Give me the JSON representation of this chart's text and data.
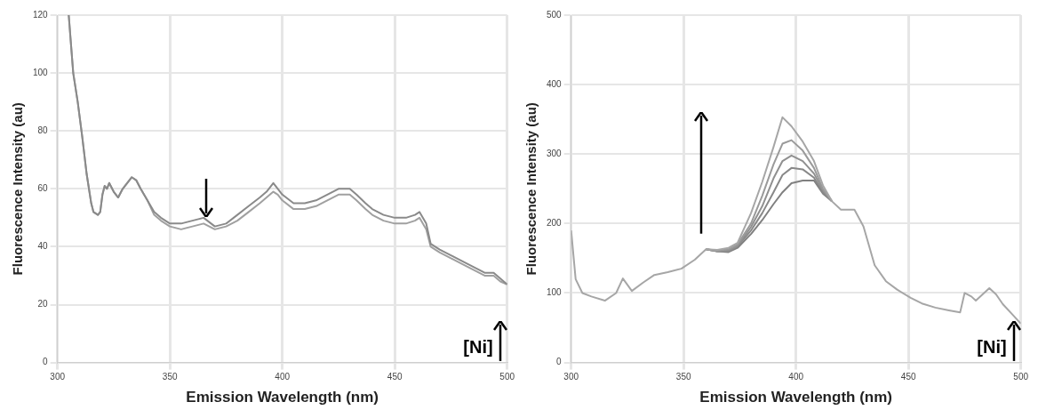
{
  "chart_data": [
    {
      "type": "line",
      "xlabel": "Emission Wavelength (nm)",
      "ylabel": "Fluorescence Intensity (au)",
      "xlim": [
        300,
        500
      ],
      "xticks": [
        300,
        350,
        400,
        450,
        500
      ],
      "ylim": [
        0,
        120
      ],
      "yticks": [
        0,
        20,
        40,
        60,
        80,
        100,
        120
      ],
      "grid": true,
      "annotations": [
        "[Ni]"
      ],
      "x": [
        305,
        306,
        307,
        309,
        311,
        313,
        315,
        316,
        318,
        319,
        320,
        321,
        322,
        323,
        325,
        327,
        329,
        331,
        333,
        335,
        337,
        340,
        343,
        346,
        350,
        355,
        360,
        365,
        370,
        375,
        380,
        385,
        390,
        393,
        396,
        398,
        400,
        405,
        410,
        415,
        420,
        425,
        430,
        433,
        437,
        440,
        445,
        450,
        455,
        459,
        461,
        464,
        466,
        470,
        475,
        480,
        485,
        490,
        494,
        497,
        500
      ],
      "series": [
        {
          "color": "#8a8a8a",
          "values": [
            120,
            110,
            100,
            90,
            78,
            65,
            55,
            52,
            51,
            52,
            58,
            61,
            60,
            62,
            59,
            57,
            60,
            62,
            64,
            63,
            60,
            56,
            52,
            50,
            48,
            48,
            49,
            50,
            47,
            48,
            51,
            54,
            57,
            59,
            62,
            60,
            58,
            55,
            55,
            56,
            58,
            60,
            60,
            58,
            55,
            53,
            51,
            50,
            50,
            51,
            52,
            48,
            41,
            39,
            37,
            35,
            33,
            31,
            31,
            29,
            27
          ]
        },
        {
          "color": "#a0a0a0",
          "values": [
            120,
            110,
            100,
            90,
            78,
            65,
            55,
            52,
            51,
            52,
            58,
            61,
            60,
            62,
            59,
            57,
            60,
            62,
            64,
            63,
            60,
            56,
            51,
            49,
            47,
            46,
            47,
            48,
            46,
            47,
            49,
            52,
            55,
            57,
            59,
            58,
            56,
            53,
            53,
            54,
            56,
            58,
            58,
            56,
            53,
            51,
            49,
            48,
            48,
            49,
            50,
            46,
            40,
            38,
            36,
            34,
            32,
            30,
            30,
            28,
            27
          ]
        }
      ]
    },
    {
      "type": "line",
      "xlabel": "Emission Wavelength (nm)",
      "ylabel": "Fluorescence Intensity (au)",
      "xlim": [
        300,
        500
      ],
      "xticks": [
        300,
        350,
        400,
        450,
        500
      ],
      "ylim": [
        0,
        500
      ],
      "yticks": [
        0,
        100,
        200,
        300,
        400,
        500
      ],
      "grid": true,
      "annotations": [
        "[Ni]"
      ],
      "x": [
        300,
        302,
        305,
        309,
        315,
        320,
        323,
        327,
        332,
        337,
        343,
        349,
        355,
        360,
        365,
        370,
        374,
        380,
        385,
        390,
        394,
        398,
        403,
        408,
        412,
        416,
        420,
        426,
        430,
        435,
        440,
        445,
        451,
        456,
        462,
        468,
        473,
        475,
        478,
        480,
        483,
        486,
        489,
        492,
        496,
        500
      ],
      "series": [
        {
          "color": "#a6a6a6",
          "values": [
            190,
            120,
            100,
            95,
            89,
            100,
            121,
            103,
            115,
            126,
            130,
            135,
            148,
            163,
            162,
            165,
            172,
            215,
            260,
            310,
            353,
            340,
            318,
            290,
            255,
            232,
            220,
            220,
            196,
            140,
            117,
            105,
            93,
            85,
            79,
            75,
            72,
            100,
            95,
            89,
            98,
            107,
            98,
            84,
            70,
            56
          ]
        },
        {
          "color": "#9a9a9a",
          "values": [
            null,
            null,
            null,
            null,
            null,
            null,
            null,
            null,
            null,
            null,
            null,
            null,
            null,
            163,
            161,
            163,
            170,
            200,
            240,
            285,
            315,
            320,
            305,
            280,
            250,
            232,
            null,
            null,
            null,
            null,
            null,
            null,
            null,
            null,
            null,
            null,
            null,
            null,
            null,
            null,
            null,
            null,
            null,
            null,
            null,
            null
          ]
        },
        {
          "color": "#909090",
          "values": [
            null,
            null,
            null,
            null,
            null,
            null,
            null,
            null,
            null,
            null,
            null,
            null,
            null,
            163,
            160,
            161,
            168,
            195,
            225,
            265,
            290,
            298,
            290,
            272,
            248,
            232,
            null,
            null,
            null,
            null,
            null,
            null,
            null,
            null,
            null,
            null,
            null,
            null,
            null,
            null,
            null,
            null,
            null,
            null,
            null,
            null
          ]
        },
        {
          "color": "#888888",
          "values": [
            null,
            null,
            null,
            null,
            null,
            null,
            null,
            null,
            null,
            null,
            null,
            null,
            null,
            163,
            160,
            160,
            167,
            190,
            215,
            245,
            270,
            280,
            278,
            266,
            245,
            232,
            null,
            null,
            null,
            null,
            null,
            null,
            null,
            null,
            null,
            null,
            null,
            null,
            null,
            null,
            null,
            null,
            null,
            null,
            null,
            null
          ]
        },
        {
          "color": "#808080",
          "values": [
            null,
            null,
            null,
            null,
            null,
            null,
            null,
            null,
            null,
            null,
            null,
            null,
            null,
            163,
            160,
            159,
            165,
            185,
            205,
            228,
            245,
            258,
            262,
            262,
            243,
            232,
            null,
            null,
            null,
            null,
            null,
            null,
            null,
            null,
            null,
            null,
            null,
            null,
            null,
            null,
            null,
            null,
            null,
            null,
            null,
            null
          ]
        }
      ]
    }
  ]
}
